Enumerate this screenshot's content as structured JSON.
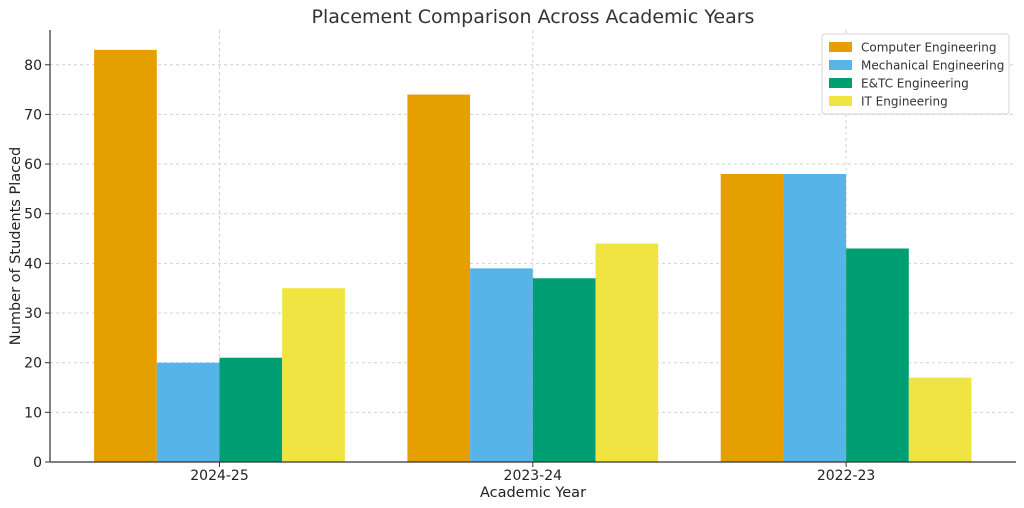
{
  "chart_data": {
    "type": "bar",
    "title": "Placement Comparison Across Academic Years",
    "xlabel": "Academic Year",
    "ylabel": "Number of Students Placed",
    "categories": [
      "2024-25",
      "2023-24",
      "2022-23"
    ],
    "ylim": [
      0,
      87
    ],
    "yticks": [
      0,
      10,
      20,
      30,
      40,
      50,
      60,
      70,
      80
    ],
    "grid": true,
    "legend_position": "top-right",
    "series": [
      {
        "name": "Computer Engineering",
        "color": "#E69F00",
        "values": [
          83,
          74,
          58
        ]
      },
      {
        "name": "Mechanical Engineering",
        "color": "#56B4E9",
        "values": [
          20,
          39,
          58
        ]
      },
      {
        "name": "E&TC Engineering",
        "color": "#009E73",
        "values": [
          21,
          37,
          43
        ]
      },
      {
        "name": "IT Engineering",
        "color": "#F0E442",
        "values": [
          35,
          44,
          17
        ]
      }
    ]
  }
}
